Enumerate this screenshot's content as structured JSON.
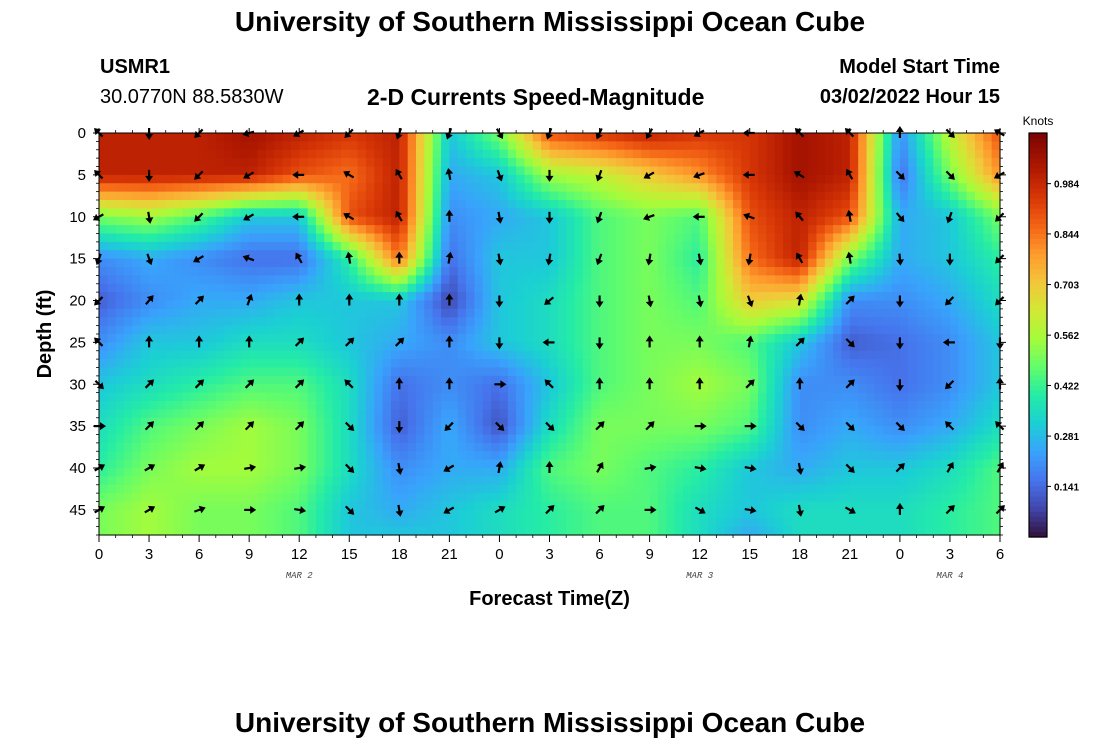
{
  "header": {
    "main_title": "University of Southern Mississippi Ocean Cube",
    "station_id": "USMR1",
    "station_coords": "30.0770N  88.5830W",
    "start_label": "Model Start Time",
    "start_value": "03/02/2022 Hour 15",
    "footer_title": "University of Southern Mississippi Ocean Cube"
  },
  "chart_data": {
    "type": "heatmap",
    "title": "2-D Currents Speed-Magnitude",
    "xlabel": "Forecast Time(Z)",
    "ylabel": "Depth (ft)",
    "x_ticks": [
      "0",
      "3",
      "6",
      "9",
      "12",
      "15",
      "18",
      "21",
      "0",
      "3",
      "6",
      "9",
      "12",
      "15",
      "18",
      "21",
      "0",
      "3",
      "6"
    ],
    "x_range_hours": [
      0,
      54
    ],
    "day_labels": [
      {
        "label": "MAR 2",
        "hour": 12
      },
      {
        "label": "MAR 3",
        "hour": 36
      },
      {
        "label": "MAR 4",
        "hour": 51
      }
    ],
    "y_ticks": [
      0,
      5,
      10,
      15,
      20,
      25,
      30,
      35,
      40,
      45
    ],
    "y_range": [
      0,
      48
    ],
    "y_inverted": true,
    "colorbar": {
      "unit": "Knots",
      "min": 0.0,
      "max": 1.125,
      "ticks": [
        0.141,
        0.281,
        0.422,
        0.562,
        0.703,
        0.844,
        0.984
      ],
      "colormap": "turbo"
    },
    "speed_field": {
      "description_source": "estimated from colors",
      "x_hours": [
        0,
        3,
        6,
        9,
        12,
        15,
        18,
        21,
        24,
        27,
        30,
        33,
        36,
        39,
        42,
        45,
        48,
        51,
        54
      ],
      "depths_ft": [
        0,
        5,
        10,
        15,
        20,
        25,
        30,
        35,
        40,
        45,
        48
      ],
      "values": [
        [
          1.0,
          1.0,
          1.0,
          1.05,
          1.0,
          0.95,
          1.0,
          0.3,
          0.5,
          0.9,
          0.95,
          1.0,
          0.95,
          0.95,
          1.05,
          1.0,
          0.2,
          0.6,
          0.9
        ],
        [
          1.0,
          1.0,
          1.0,
          1.0,
          0.9,
          0.85,
          1.0,
          0.25,
          0.3,
          0.55,
          0.6,
          0.7,
          0.8,
          0.95,
          1.05,
          1.0,
          0.15,
          0.5,
          0.8
        ],
        [
          0.5,
          0.55,
          0.45,
          0.3,
          0.3,
          0.9,
          1.0,
          0.2,
          0.25,
          0.3,
          0.45,
          0.5,
          0.45,
          0.9,
          1.0,
          0.9,
          0.25,
          0.3,
          0.5
        ],
        [
          0.2,
          0.25,
          0.2,
          0.15,
          0.15,
          0.4,
          0.85,
          0.15,
          0.3,
          0.3,
          0.45,
          0.5,
          0.4,
          0.85,
          1.0,
          0.5,
          0.25,
          0.3,
          0.4
        ],
        [
          0.12,
          0.2,
          0.25,
          0.25,
          0.3,
          0.3,
          0.3,
          0.08,
          0.3,
          0.35,
          0.45,
          0.5,
          0.45,
          0.7,
          0.65,
          0.2,
          0.2,
          0.25,
          0.35
        ],
        [
          0.2,
          0.3,
          0.3,
          0.35,
          0.35,
          0.3,
          0.25,
          0.2,
          0.3,
          0.35,
          0.45,
          0.5,
          0.5,
          0.45,
          0.3,
          0.12,
          0.15,
          0.2,
          0.3
        ],
        [
          0.3,
          0.35,
          0.4,
          0.45,
          0.45,
          0.35,
          0.15,
          0.2,
          0.15,
          0.3,
          0.45,
          0.5,
          0.55,
          0.5,
          0.2,
          0.2,
          0.15,
          0.2,
          0.3
        ],
        [
          0.35,
          0.45,
          0.5,
          0.55,
          0.5,
          0.35,
          0.12,
          0.25,
          0.1,
          0.35,
          0.5,
          0.5,
          0.5,
          0.45,
          0.2,
          0.25,
          0.2,
          0.25,
          0.35
        ],
        [
          0.4,
          0.5,
          0.55,
          0.55,
          0.5,
          0.35,
          0.2,
          0.25,
          0.25,
          0.45,
          0.5,
          0.45,
          0.4,
          0.3,
          0.25,
          0.3,
          0.3,
          0.35,
          0.45
        ],
        [
          0.5,
          0.55,
          0.5,
          0.5,
          0.45,
          0.3,
          0.25,
          0.3,
          0.35,
          0.4,
          0.45,
          0.45,
          0.35,
          0.3,
          0.35,
          0.35,
          0.35,
          0.4,
          0.45
        ],
        [
          0.5,
          0.55,
          0.5,
          0.5,
          0.45,
          0.3,
          0.3,
          0.3,
          0.35,
          0.4,
          0.45,
          0.45,
          0.35,
          0.25,
          0.35,
          0.35,
          0.35,
          0.4,
          0.45
        ]
      ]
    },
    "vectors": {
      "description_source": "arrow directions estimated, degrees toward which current flows (0 = up/north, 90 = right/east)",
      "depths_ft": [
        0,
        5,
        10,
        15,
        20,
        25,
        30,
        35,
        40,
        45
      ],
      "x_hours": [
        0,
        3,
        6,
        9,
        12,
        15,
        18,
        21,
        24,
        27,
        30,
        33,
        36,
        39,
        42,
        45,
        48,
        51,
        54
      ],
      "directions_deg": [
        [
          315,
          180,
          225,
          255,
          240,
          225,
          200,
          200,
          150,
          200,
          205,
          210,
          240,
          270,
          315,
          315,
          0,
          135,
          300
        ],
        [
          315,
          180,
          225,
          240,
          270,
          300,
          330,
          350,
          160,
          180,
          200,
          240,
          250,
          270,
          300,
          330,
          135,
          135,
          240
        ],
        [
          240,
          170,
          225,
          240,
          270,
          300,
          330,
          0,
          170,
          180,
          200,
          250,
          270,
          290,
          320,
          350,
          140,
          200,
          225
        ],
        [
          200,
          160,
          240,
          290,
          330,
          350,
          0,
          10,
          170,
          190,
          200,
          190,
          170,
          190,
          330,
          350,
          175,
          180,
          225
        ],
        [
          225,
          40,
          45,
          20,
          0,
          0,
          0,
          0,
          180,
          230,
          180,
          170,
          170,
          160,
          10,
          45,
          180,
          225,
          225
        ],
        [
          315,
          0,
          0,
          0,
          45,
          45,
          45,
          0,
          180,
          270,
          180,
          0,
          0,
          10,
          45,
          135,
          180,
          270,
          180
        ],
        [
          135,
          45,
          45,
          45,
          45,
          315,
          0,
          0,
          90,
          315,
          0,
          0,
          0,
          45,
          0,
          45,
          180,
          225,
          0
        ],
        [
          90,
          45,
          45,
          45,
          45,
          135,
          180,
          225,
          135,
          135,
          45,
          45,
          90,
          90,
          135,
          135,
          135,
          315,
          315
        ],
        [
          60,
          60,
          60,
          80,
          80,
          135,
          170,
          240,
          10,
          0,
          30,
          80,
          100,
          100,
          170,
          135,
          45,
          30,
          30
        ],
        [
          60,
          60,
          70,
          90,
          100,
          135,
          170,
          240,
          60,
          45,
          45,
          90,
          120,
          100,
          170,
          120,
          0,
          45,
          45
        ]
      ]
    }
  }
}
